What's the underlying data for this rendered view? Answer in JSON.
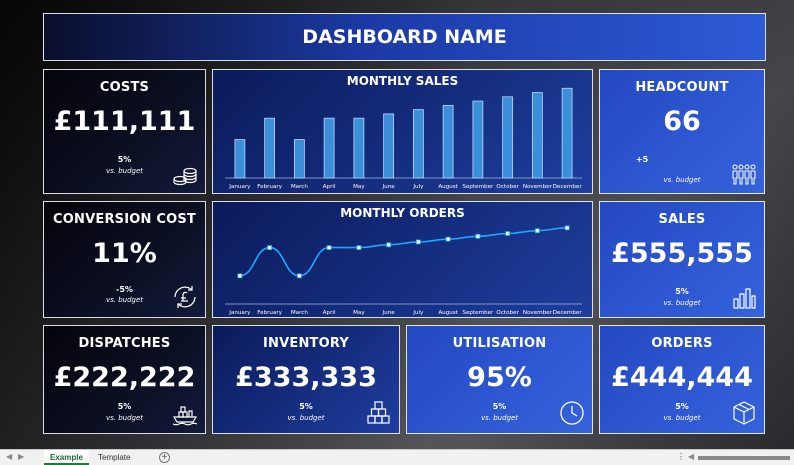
{
  "dashboard": {
    "title": "DASHBOARD NAME"
  },
  "tiles": {
    "costs": {
      "title": "COSTS",
      "value": "£111,111",
      "delta": "5%",
      "sub": "vs. budget",
      "icon": "coins-icon"
    },
    "headcount": {
      "title": "HEADCOUNT",
      "value": "66",
      "delta": "+5",
      "sub": "vs. budget",
      "icon": "people-icon"
    },
    "conversion": {
      "title": "CONVERSION COST",
      "value": "11%",
      "delta": "-5%",
      "sub": "vs. budget",
      "icon": "pound-exchange-icon"
    },
    "sales": {
      "title": "SALES",
      "value": "£555,555",
      "delta": "5%",
      "sub": "vs. budget",
      "icon": "bar-chart-icon"
    },
    "dispatches": {
      "title": "DISPATCHES",
      "value": "£222,222",
      "delta": "5%",
      "sub": "vs. budget",
      "icon": "ship-icon"
    },
    "inventory": {
      "title": "INVENTORY",
      "value": "£333,333",
      "delta": "5%",
      "sub": "vs. budget",
      "icon": "boxes-icon"
    },
    "utilisation": {
      "title": "UTILISATION",
      "value": "95%",
      "delta": "5%",
      "sub": "vs. budget",
      "icon": "clock-icon"
    },
    "orders": {
      "title": "ORDERS",
      "value": "£444,444",
      "delta": "5%",
      "sub": "vs. budget",
      "icon": "package-icon"
    }
  },
  "chart_data": [
    {
      "type": "bar",
      "title": "MONTHLY SALES",
      "categories": [
        "January",
        "February",
        "March",
        "April",
        "May",
        "June",
        "July",
        "August",
        "September",
        "October",
        "November",
        "December"
      ],
      "values": [
        45,
        70,
        45,
        70,
        70,
        75,
        80,
        85,
        90,
        95,
        100,
        105
      ],
      "ylim": [
        0,
        110
      ],
      "grid": false,
      "legend": "none",
      "color": "#3a8fd8"
    },
    {
      "type": "line",
      "title": "MONTHLY ORDERS",
      "categories": [
        "January",
        "February",
        "March",
        "April",
        "May",
        "June",
        "July",
        "August",
        "September",
        "October",
        "November",
        "December"
      ],
      "values": [
        30,
        60,
        30,
        60,
        60,
        63,
        66,
        69,
        72,
        75,
        78,
        81
      ],
      "ylim": [
        0,
        100
      ],
      "grid": false,
      "legend": "none",
      "color": "#1fa8ff"
    }
  ],
  "sheet_tabs": [
    {
      "label": "Example",
      "active": true
    },
    {
      "label": "Template",
      "active": false
    }
  ],
  "statusbar": {
    "more_icon": "⋮",
    "add_sheet": "+"
  }
}
